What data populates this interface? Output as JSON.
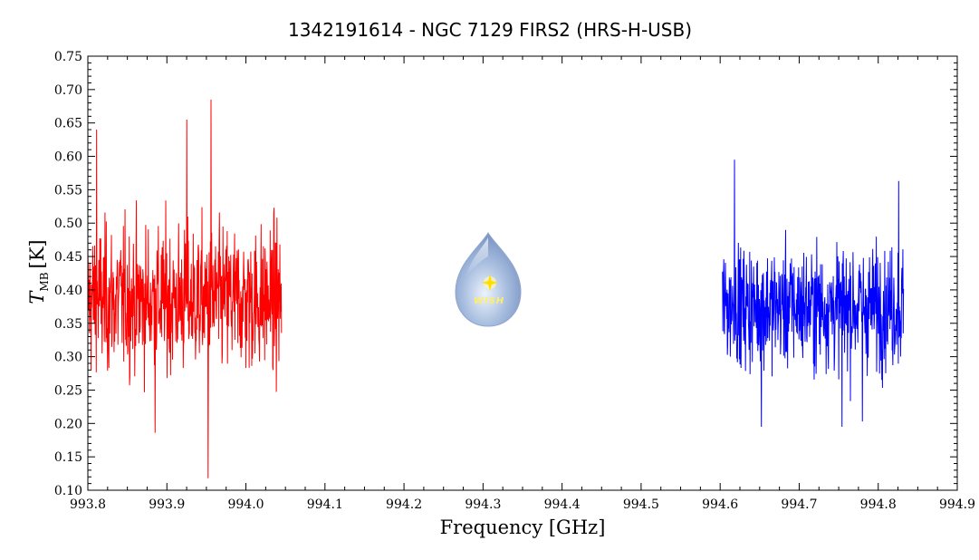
{
  "chart_data": {
    "type": "line",
    "title": "1342191614 - NGC 7129 FIRS2 (HRS-H-USB)",
    "xlabel": "Frequency [GHz]",
    "ylabel_main": "T",
    "ylabel_sub": "MB",
    "ylabel_unit": "[K]",
    "xlim": [
      993.8,
      994.9
    ],
    "ylim": [
      0.1,
      0.75
    ],
    "xticks": [
      "993.8",
      "993.9",
      "994.0",
      "994.1",
      "994.2",
      "994.3",
      "994.4",
      "994.5",
      "994.6",
      "994.7",
      "994.8",
      "994.9"
    ],
    "yticks": [
      "0.10",
      "0.15",
      "0.20",
      "0.25",
      "0.30",
      "0.35",
      "0.40",
      "0.45",
      "0.50",
      "0.55",
      "0.60",
      "0.65",
      "0.70",
      "0.75"
    ],
    "grid": false,
    "series": [
      {
        "color": "#ff0000",
        "x_range": [
          993.8,
          994.045
        ],
        "mean": 0.385,
        "noise_sigma": 0.075,
        "points": 600,
        "extrema": [
          [
            993.952,
            0.118
          ],
          [
            993.956,
            0.685
          ],
          [
            993.811,
            0.64
          ],
          [
            993.925,
            0.655
          ],
          [
            993.885,
            0.186
          ]
        ]
      },
      {
        "color": "#0000ff",
        "x_range": [
          994.603,
          994.832
        ],
        "mean": 0.375,
        "noise_sigma": 0.062,
        "points": 560,
        "extrema": [
          [
            994.618,
            0.595
          ],
          [
            994.826,
            0.563
          ],
          [
            994.652,
            0.195
          ],
          [
            994.754,
            0.195
          ],
          [
            994.78,
            0.203
          ]
        ]
      }
    ]
  },
  "logo": {
    "text": "WISH"
  }
}
